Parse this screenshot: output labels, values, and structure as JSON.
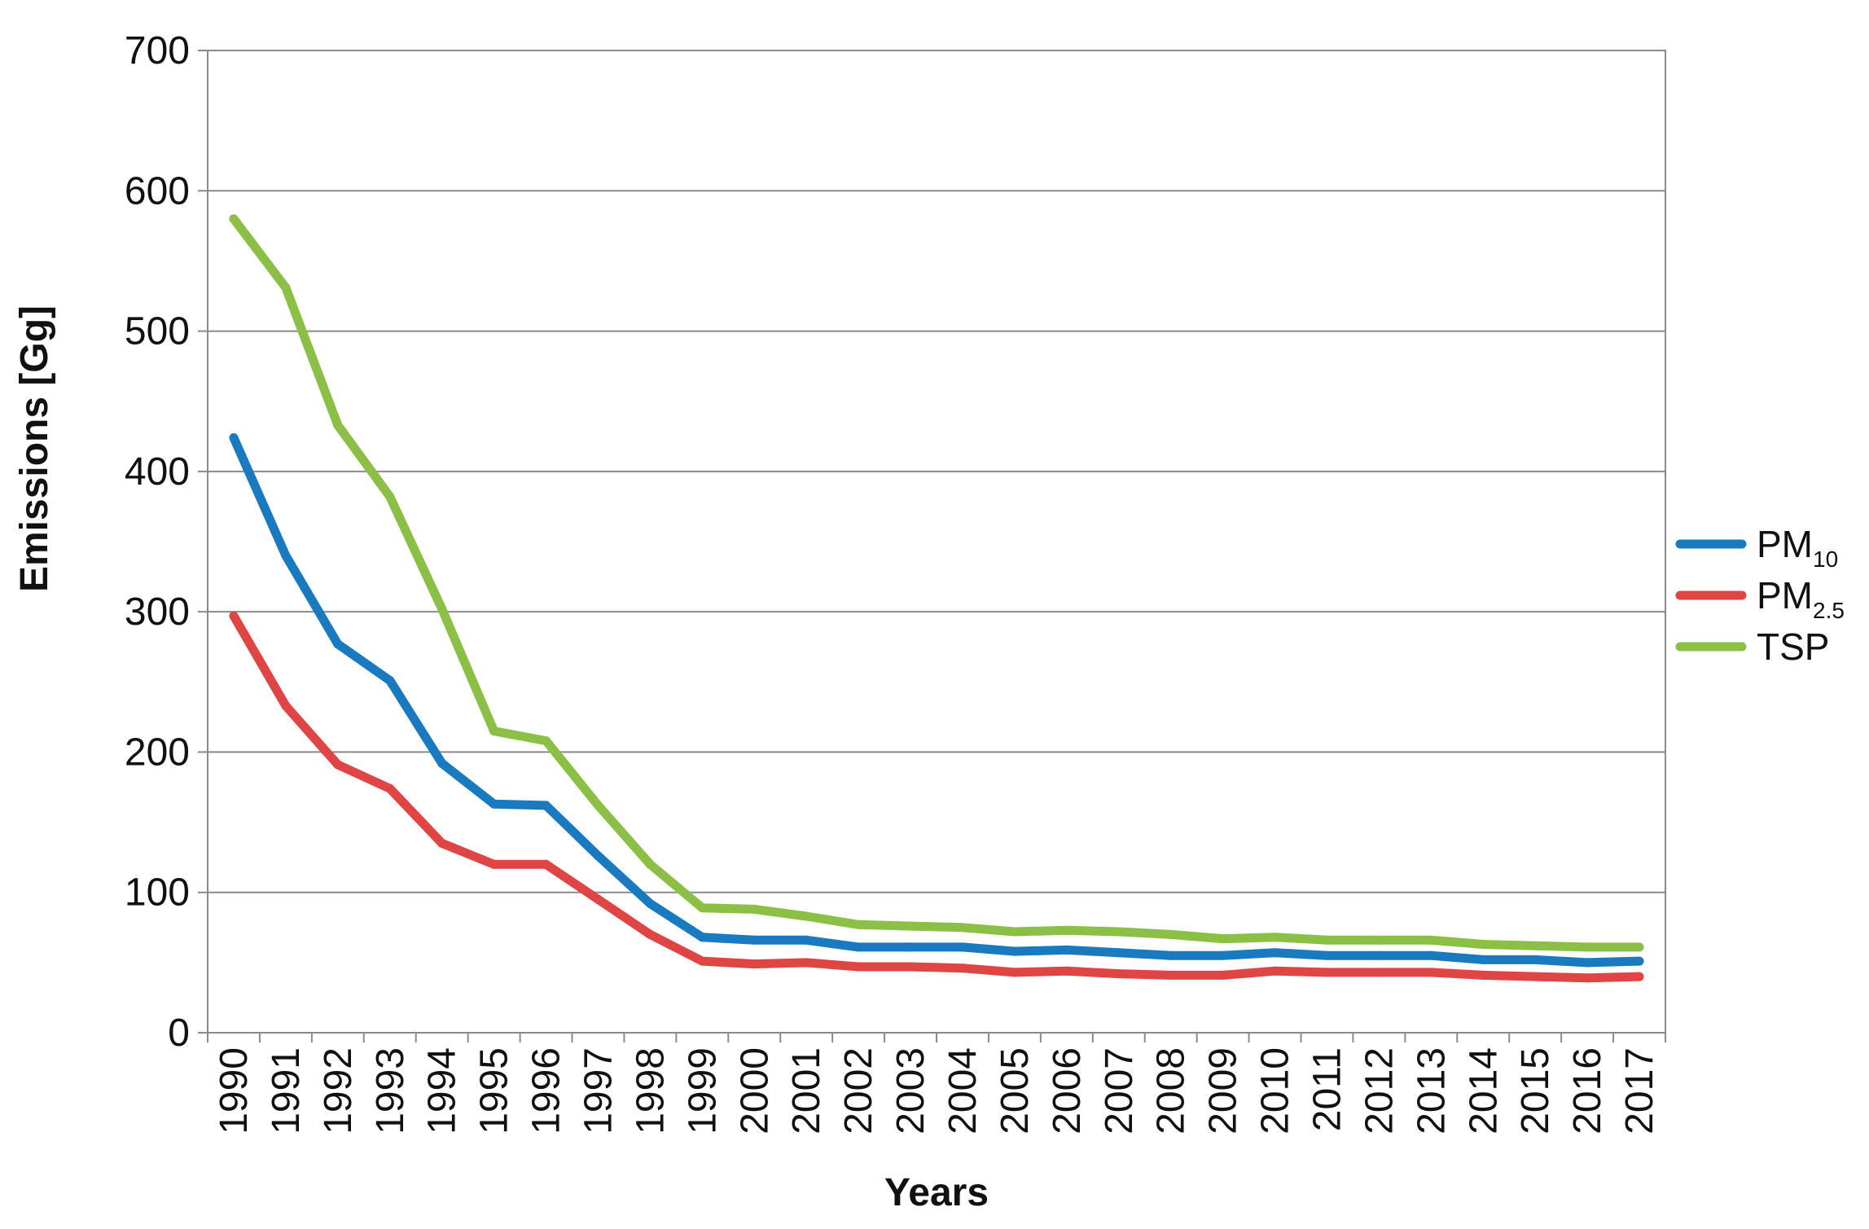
{
  "chart_data": {
    "type": "line",
    "xlabel": "Years",
    "ylabel": "Emissions [Gg]",
    "ylim": [
      0,
      700
    ],
    "yticks": [
      "0",
      "100",
      "200",
      "300",
      "400",
      "500",
      "600",
      "700"
    ],
    "grid": "horizontal",
    "legend_position": "right",
    "categories": [
      "1990",
      "1991",
      "1992",
      "1993",
      "1994",
      "1995",
      "1996",
      "1997",
      "1998",
      "1999",
      "2000",
      "2001",
      "2002",
      "2003",
      "2004",
      "2005",
      "2006",
      "2007",
      "2008",
      "2009",
      "2010",
      "2011",
      "2012",
      "2013",
      "2014",
      "2015",
      "2016",
      "2017"
    ],
    "series": [
      {
        "name": "PM10",
        "label_main": "PM",
        "label_sub": "10",
        "color": "#1a7abf",
        "values": [
          424,
          340,
          277,
          251,
          192,
          163,
          162,
          126,
          92,
          68,
          66,
          66,
          61,
          61,
          61,
          58,
          59,
          57,
          55,
          55,
          57,
          55,
          55,
          55,
          52,
          52,
          50,
          51
        ]
      },
      {
        "name": "PM2.5",
        "label_main": "PM",
        "label_sub": "2.5",
        "color": "#e04545",
        "values": [
          297,
          233,
          191,
          174,
          135,
          120,
          120,
          95,
          70,
          51,
          49,
          50,
          47,
          47,
          46,
          43,
          44,
          42,
          41,
          41,
          44,
          43,
          43,
          43,
          41,
          40,
          39,
          40
        ]
      },
      {
        "name": "TSP",
        "label_main": "TSP",
        "label_sub": "",
        "color": "#8cbf45",
        "values": [
          580,
          531,
          433,
          382,
          302,
          215,
          208,
          162,
          120,
          89,
          88,
          83,
          77,
          76,
          75,
          72,
          73,
          72,
          70,
          67,
          68,
          66,
          66,
          66,
          63,
          62,
          61,
          61
        ]
      }
    ]
  }
}
